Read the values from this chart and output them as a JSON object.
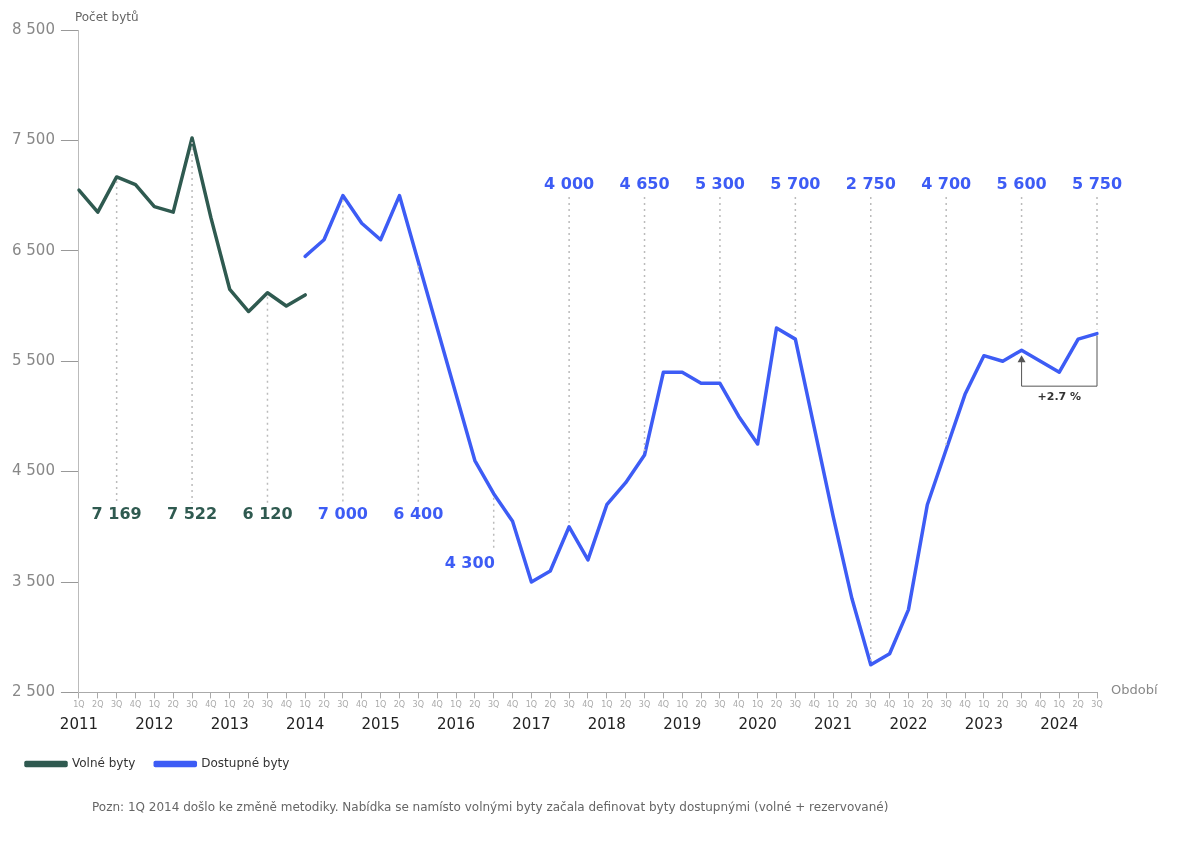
{
  "chart_data": {
    "type": "line",
    "ylabel": "Počet bytů",
    "xlabel": "Období",
    "categories": [
      "1Q",
      "2Q",
      "3Q",
      "4Q",
      "1Q",
      "2Q",
      "3Q",
      "4Q",
      "1Q",
      "2Q",
      "3Q",
      "4Q",
      "1Q",
      "2Q",
      "3Q",
      "4Q",
      "1Q",
      "2Q",
      "3Q",
      "4Q",
      "1Q",
      "2Q",
      "3Q",
      "4Q",
      "1Q",
      "2Q",
      "3Q",
      "4Q",
      "1Q",
      "2Q",
      "3Q",
      "4Q",
      "1Q",
      "2Q",
      "3Q",
      "4Q",
      "1Q",
      "2Q",
      "3Q",
      "4Q",
      "1Q",
      "2Q",
      "3Q",
      "4Q",
      "1Q",
      "2Q",
      "3Q",
      "4Q",
      "1Q",
      "2Q",
      "3Q",
      "4Q",
      "1Q",
      "2Q",
      "3Q"
    ],
    "x2lim": [
      2011,
      2024.5
    ],
    "x2ticks": [
      2011,
      2012,
      2013,
      2014,
      2015,
      2016,
      2017,
      2018,
      2019,
      2020,
      2021,
      2022,
      2023,
      2024
    ],
    "series": [
      {
        "name": "Volné byty",
        "color": "#2f5a50",
        "values": [
          7050,
          6850,
          7169,
          7100,
          6900,
          6850,
          7522,
          6800,
          6150,
          5950,
          6120,
          6000,
          6100,
          null,
          null,
          null,
          null,
          null,
          null,
          null,
          null,
          null,
          null,
          null,
          null,
          null,
          null,
          null,
          null,
          null,
          null,
          null,
          null,
          null,
          null,
          null,
          null,
          null,
          null,
          null,
          null,
          null,
          null,
          null,
          null,
          null,
          null,
          null,
          null,
          null,
          null,
          null,
          null,
          null,
          null
        ],
        "value_labels": [
          null,
          null,
          "7 169",
          null,
          null,
          null,
          "7 522",
          null,
          null,
          null,
          "6 120",
          null,
          null,
          null,
          null,
          null,
          null,
          null,
          null,
          null,
          null,
          null,
          null,
          null,
          null,
          null,
          null,
          null,
          null,
          null,
          null,
          null,
          null,
          null,
          null,
          null,
          null,
          null,
          null,
          null,
          null,
          null,
          null,
          null,
          null,
          null,
          null,
          null,
          null,
          null,
          null,
          null,
          null,
          null,
          null
        ]
      },
      {
        "name": "Dostupné byty",
        "color": "#3d5cf5",
        "values": [
          null,
          null,
          null,
          null,
          null,
          null,
          null,
          null,
          null,
          null,
          null,
          null,
          6450,
          6600,
          7000,
          6750,
          6600,
          7000,
          6400,
          5800,
          5200,
          4600,
          4300,
          4050,
          3500,
          3600,
          4000,
          3700,
          4200,
          4400,
          4650,
          5400,
          5400,
          5300,
          5300,
          5000,
          4750,
          5800,
          5700,
          4900,
          4100,
          3350,
          2750,
          2850,
          3250,
          4200,
          4700,
          5200,
          5550,
          5500,
          5600,
          5500,
          5400,
          5700,
          5750
        ],
        "value_labels": [
          null,
          null,
          null,
          null,
          null,
          null,
          null,
          null,
          null,
          null,
          null,
          null,
          null,
          null,
          "7 000",
          null,
          null,
          null,
          "6 400",
          null,
          null,
          null,
          "4 300",
          null,
          null,
          null,
          "4 000",
          null,
          null,
          null,
          "4 650",
          null,
          null,
          null,
          "5 300",
          null,
          null,
          null,
          "5 700",
          null,
          null,
          null,
          "2 750",
          null,
          null,
          null,
          "4 700",
          null,
          null,
          null,
          "5 600",
          null,
          null,
          null,
          "5 750"
        ]
      }
    ],
    "ylim": [
      2500,
      8500
    ],
    "yticks": [
      {
        "value": 2500,
        "label": "2 500"
      },
      {
        "value": 3500,
        "label": "3 500"
      },
      {
        "value": 4500,
        "label": "4 500"
      },
      {
        "value": 5500,
        "label": "5 500"
      },
      {
        "value": 6500,
        "label": "6 500"
      },
      {
        "value": 7500,
        "label": "7 500"
      },
      {
        "value": 8500,
        "label": "8 500"
      }
    ],
    "grid": false,
    "legend": "bottom left",
    "marker": "none",
    "line_style": "solid",
    "annotations": [
      "+2.7 %",
      "Pozn: 1Q 2014 došlo ke změně metodiky. Nabídka se namísto volnými byty začala definovat byty dostupnými (volné + rezervované)"
    ]
  }
}
